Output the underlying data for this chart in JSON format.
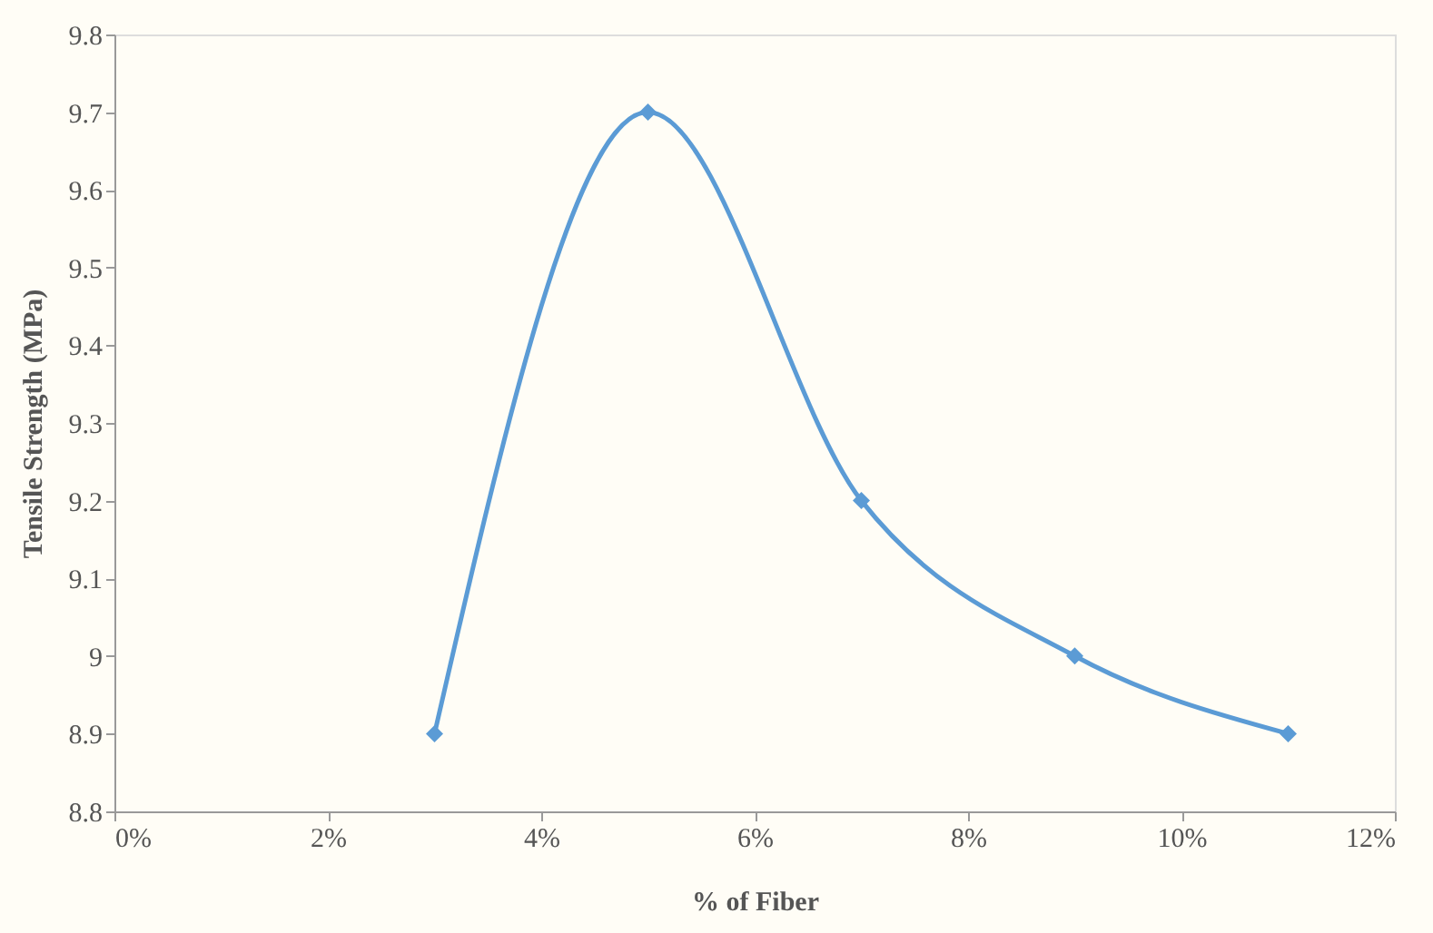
{
  "chart_data": {
    "type": "line",
    "xlabel": "% of Fiber",
    "ylabel": "Tensile Strength (MPa)",
    "x": [
      3,
      5,
      7,
      9,
      11
    ],
    "series": [
      {
        "color": "#5b9bd5",
        "values": [
          8.9,
          9.7,
          9.2,
          9.0,
          8.9
        ]
      }
    ],
    "xlim": [
      0,
      12
    ],
    "xticks": [
      {
        "value": 0,
        "label": "0%"
      },
      {
        "value": 2,
        "label": "2%"
      },
      {
        "value": 4,
        "label": "4%"
      },
      {
        "value": 6,
        "label": "6%"
      },
      {
        "value": 8,
        "label": "8%"
      },
      {
        "value": 10,
        "label": "10%"
      },
      {
        "value": 12,
        "label": "12%"
      }
    ],
    "ylim": [
      8.8,
      9.8
    ],
    "yticks": [
      8.8,
      8.9,
      9,
      9.1,
      9.2,
      9.3,
      9.4,
      9.5,
      9.6,
      9.7,
      9.8
    ],
    "marker": "diamond",
    "grid": false
  }
}
